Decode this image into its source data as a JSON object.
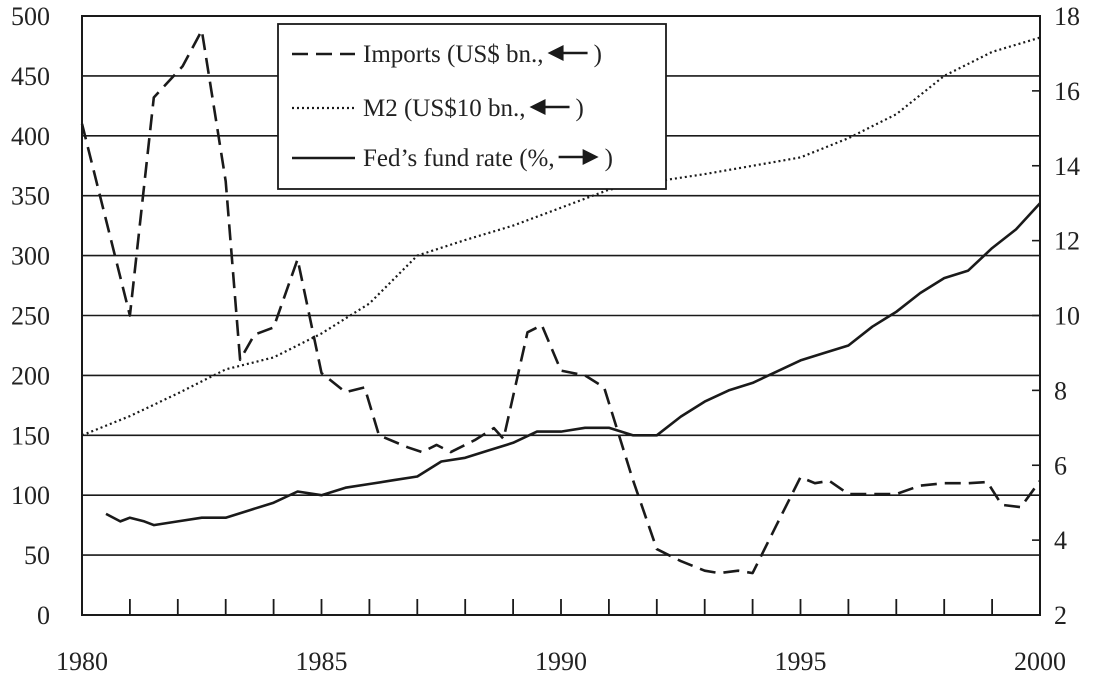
{
  "chart_data": {
    "type": "line",
    "title": "",
    "xlabel": "",
    "ylabel": "",
    "xlim": [
      1980,
      2000
    ],
    "ylim_left": [
      0,
      500
    ],
    "ylim_right": [
      2,
      18
    ],
    "grid": true,
    "legend_position": "top-center",
    "x_ticks": [
      "1980",
      "1985",
      "1990",
      "1995",
      "2000"
    ],
    "y_left_ticks": [
      "0",
      "50",
      "100",
      "150",
      "200",
      "250",
      "300",
      "350",
      "400",
      "450",
      "500"
    ],
    "y_right_ticks": [
      "2",
      "4",
      "6",
      "8",
      "10",
      "12",
      "14",
      "16",
      "18"
    ],
    "legend": [
      {
        "pre": "Imports (US$ bn., ",
        "arrow": "left",
        "post": ")"
      },
      {
        "pre": "M2 (US$10 bn., ",
        "arrow": "left",
        "post": ")"
      },
      {
        "pre": "Fed’s fund rate (%, ",
        "arrow": "right",
        "post": ")"
      }
    ],
    "series": [
      {
        "axis": "left",
        "style": "dashed",
        "x": [
          1980,
          1981,
          1981.5,
          1982.1,
          1982.5,
          1983,
          1983.3,
          1983.6,
          1984,
          1984.5,
          1985,
          1985.5,
          1985.9,
          1986.2,
          1986.8,
          1987.1,
          1987.4,
          1987.7,
          1988.2,
          1988.6,
          1988.8,
          1989.3,
          1989.6,
          1990,
          1990.5,
          1990.9,
          1991.5,
          1992,
          1992.5,
          1993,
          1993.3,
          1993.7,
          1994,
          1994.5,
          1995,
          1995.3,
          1995.6,
          1996,
          1996.5,
          1997,
          1997.5,
          1998,
          1998.5,
          1998.9,
          1999.2,
          1999.6,
          2000
        ],
        "y": [
          410,
          250,
          432,
          458,
          488,
          362,
          213,
          234,
          240,
          297,
          202,
          186,
          190,
          150,
          140,
          136,
          142,
          136,
          146,
          156,
          147,
          236,
          242,
          204,
          200,
          190,
          113,
          55,
          45,
          37,
          35,
          37,
          35,
          75,
          115,
          110,
          112,
          101,
          101,
          101,
          108,
          110,
          110,
          111,
          92,
          90,
          112
        ]
      },
      {
        "axis": "left",
        "style": "dotted",
        "x": [
          1980,
          1981,
          1982,
          1983,
          1984,
          1985,
          1986,
          1987,
          1988,
          1989,
          1990,
          1991,
          1992,
          1993,
          1994,
          1995,
          1996,
          1997,
          1998,
          1999,
          2000
        ],
        "y": [
          150,
          166,
          185,
          205,
          215,
          235,
          260,
          300,
          313,
          325,
          340,
          355,
          362,
          368,
          375,
          382,
          398,
          418,
          450,
          470,
          482
        ]
      },
      {
        "axis": "right",
        "style": "solid",
        "x": [
          1980.5,
          1980.8,
          1981,
          1981.3,
          1981.5,
          1982,
          1982.5,
          1983,
          1983.5,
          1984,
          1984.5,
          1985,
          1985.5,
          1986,
          1986.5,
          1987,
          1987.5,
          1988,
          1988.5,
          1989,
          1989.5,
          1990,
          1990.5,
          1991,
          1991.5,
          1992,
          1992.5,
          1993,
          1993.5,
          1994,
          1994.5,
          1995,
          1995.5,
          1996,
          1996.5,
          1997,
          1997.5,
          1998,
          1998.5,
          1999,
          1999.5,
          2000
        ],
        "y": [
          4.7,
          4.5,
          4.6,
          4.5,
          4.4,
          4.5,
          4.6,
          4.6,
          4.8,
          5.0,
          5.3,
          5.2,
          5.4,
          5.5,
          5.6,
          5.7,
          6.1,
          6.2,
          6.4,
          6.6,
          6.9,
          6.9,
          7.0,
          7.0,
          6.8,
          6.8,
          7.3,
          7.7,
          8.0,
          8.2,
          8.5,
          8.8,
          9.0,
          9.2,
          9.7,
          10.1,
          10.6,
          11.0,
          11.2,
          11.8,
          12.3,
          13.0
        ]
      }
    ]
  }
}
